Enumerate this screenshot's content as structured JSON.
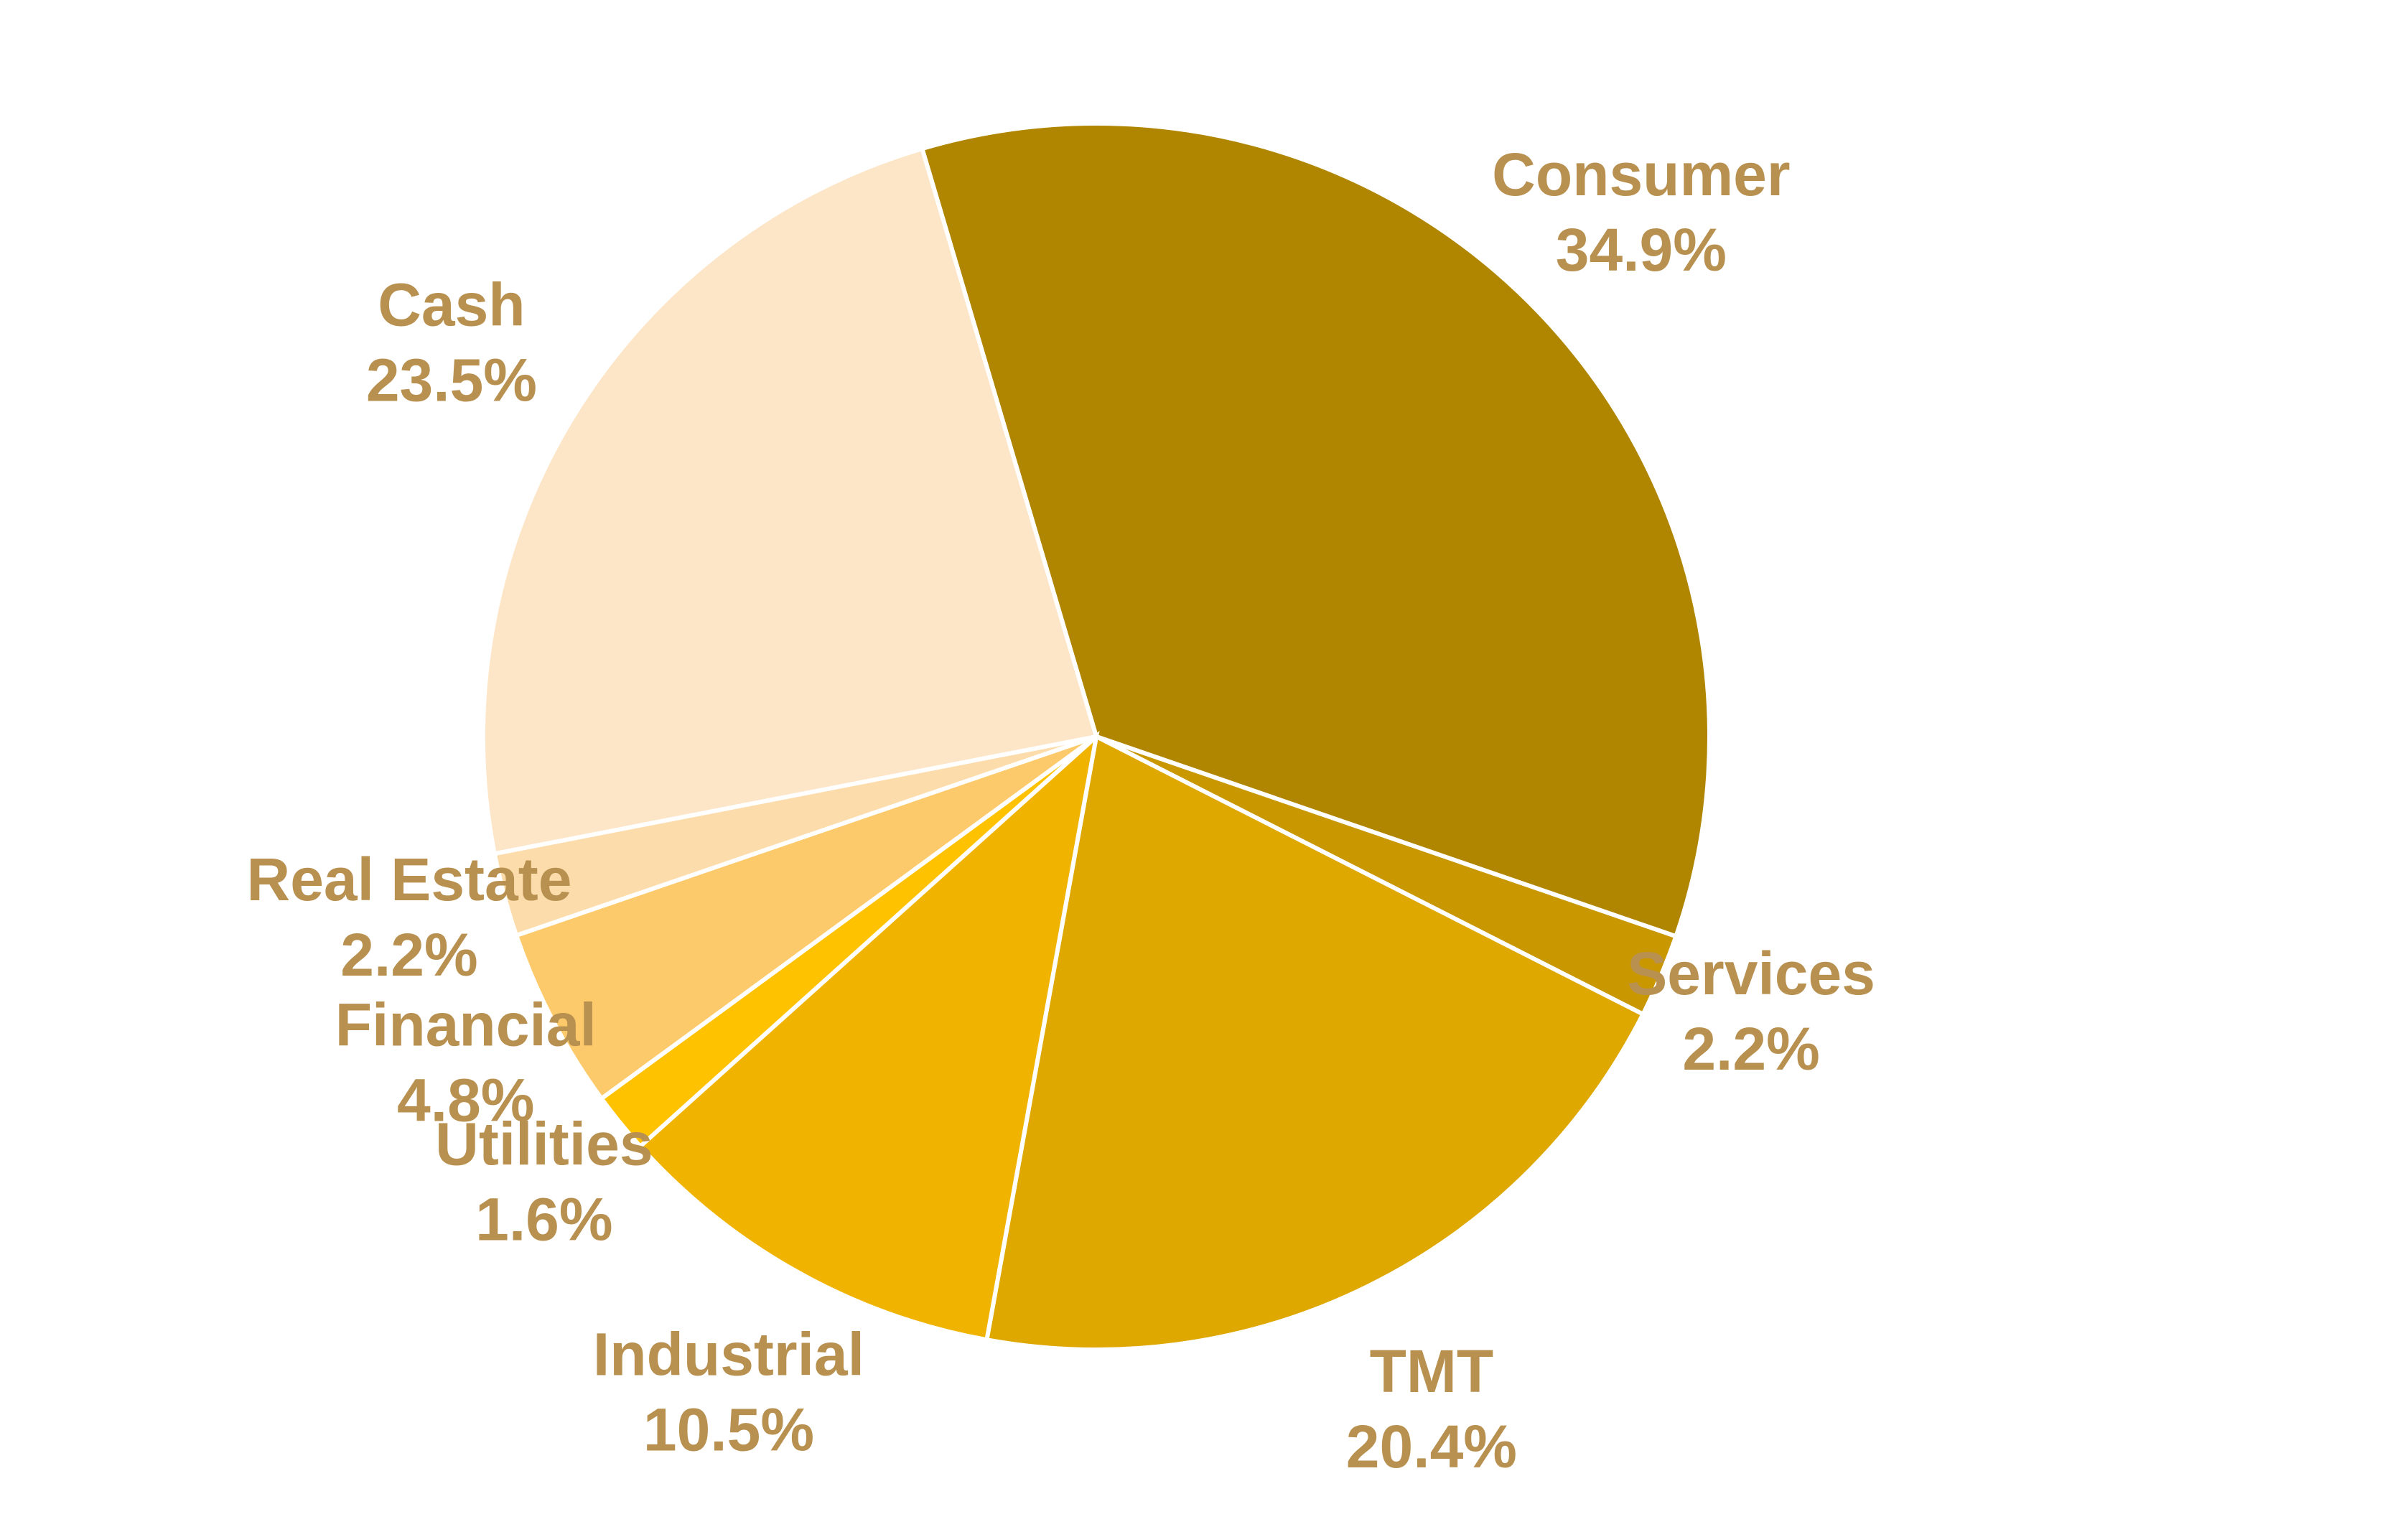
{
  "chart_data": {
    "type": "pie",
    "categories": [
      "Consumer",
      "Services",
      "TMT",
      "Industrial",
      "Utilities",
      "Financial",
      "Real Estate",
      "Cash"
    ],
    "values": [
      34.9,
      2.2,
      20.4,
      10.5,
      1.6,
      4.8,
      2.2,
      23.5
    ],
    "value_labels": [
      "34.9%",
      "2.2%",
      "20.4%",
      "10.5%",
      "1.6%",
      "4.8%",
      "2.2%",
      "23.5%"
    ],
    "colors": [
      "#b08500",
      "#c99700",
      "#dea800",
      "#f0b400",
      "#ffc200",
      "#fdca6b",
      "#fddcab",
      "#fde6c8"
    ]
  }
}
